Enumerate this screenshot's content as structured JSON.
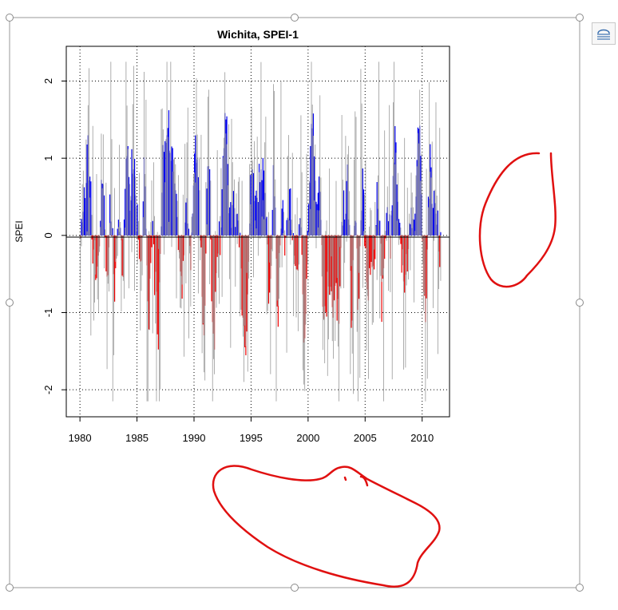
{
  "chart_data": {
    "type": "bar",
    "title": "Wichita, SPEI-1",
    "xlabel": "",
    "ylabel": "SPEI",
    "x_ticks": [
      "1980",
      "1985",
      "1990",
      "1995",
      "2000",
      "2005",
      "2010"
    ],
    "x_tick_values": [
      1980,
      1985,
      1990,
      1995,
      2000,
      2005,
      2010
    ],
    "y_ticks": [
      "-2",
      "-1",
      "0",
      "1",
      "2"
    ],
    "y_tick_values": [
      -2,
      -1,
      0,
      1,
      2
    ],
    "xlim": [
      1978.8,
      2012.4
    ],
    "ylim": [
      -2.35,
      2.45
    ],
    "grid": true,
    "start_year": 1980,
    "months": 380,
    "colors": {
      "positive": "#0000ee",
      "negative": "#ee0000",
      "raw": "#999999"
    }
  },
  "annotations": {
    "ink_color": "#e01010"
  },
  "icons": {
    "layout_options": "layout-options-icon"
  }
}
